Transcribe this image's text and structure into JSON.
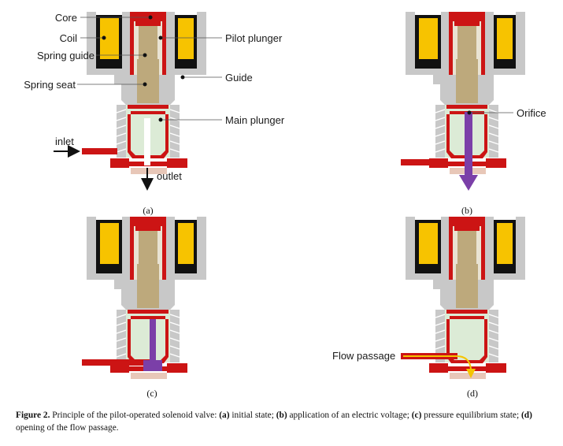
{
  "labels": {
    "core": "Core",
    "coil": "Coil",
    "spring_guide": "Spring guide",
    "spring_seat": "Spring seat",
    "pilot_plunger": "Pilot plunger",
    "guide": "Guide",
    "main_plunger": "Main plunger",
    "inlet": "inlet",
    "outlet": "outlet",
    "orifice": "Orifice",
    "flow_passage": "Flow passage"
  },
  "subfigures": {
    "a": "(a)",
    "b": "(b)",
    "c": "(c)",
    "d": "(d)"
  },
  "caption": {
    "figure": "Figure 2.",
    "intro": " Principle of the pilot-operated solenoid valve: ",
    "a_tag": "(a)",
    "a_text": " initial state; ",
    "b_tag": "(b)",
    "b_text": " application of an electric voltage; ",
    "c_tag": "(c)",
    "c_text": " pressure equilibrium state; ",
    "d_tag": "(d)",
    "d_text": " opening of the flow passage."
  },
  "colors": {
    "coil": "#f7c300",
    "housing": "#c8c8c8",
    "red": "#cc1414",
    "plunger": "#bda97c",
    "chamber": "#dcebd6",
    "flow": "#7b3fa8",
    "flow_passage": "#f5c400",
    "seat": "#e8c7b8"
  }
}
